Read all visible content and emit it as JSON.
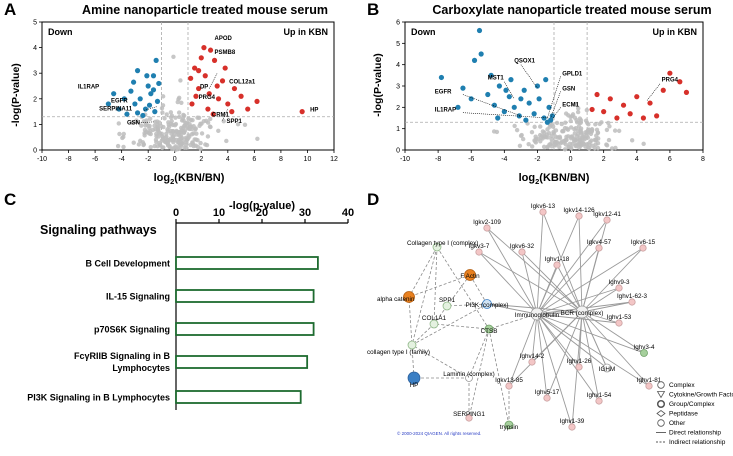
{
  "panels": {
    "a": {
      "letter": "A"
    },
    "b": {
      "letter": "B"
    },
    "c": {
      "letter": "C"
    },
    "d": {
      "letter": "D"
    }
  },
  "chart_data": [
    {
      "type": "scatter",
      "title": "Amine nanoparticle treated mouse serum",
      "xlabel_pre": "log",
      "xlabel_sub": "2",
      "xlabel_post": "(KBN/BN)",
      "ylabel": "-log(P-value)",
      "xlim": [
        -10,
        12
      ],
      "ylim": [
        0,
        5
      ],
      "xticks": [
        -10,
        -8,
        -6,
        -4,
        -2,
        0,
        2,
        4,
        6,
        8,
        10,
        12
      ],
      "yticks": [
        0,
        1,
        2,
        3,
        4,
        5
      ],
      "threshold_x": [
        -1,
        1
      ],
      "threshold_y": 1.3,
      "down_label": "Down",
      "up_label": "Up in KBN",
      "down_points": [
        [
          -4.2,
          1.6
        ],
        [
          -3.8,
          2.0
        ],
        [
          -3.3,
          2.3
        ],
        [
          -3.0,
          1.8
        ],
        [
          -2.6,
          2.0
        ],
        [
          -2.2,
          1.6
        ],
        [
          -1.8,
          2.2
        ],
        [
          -1.5,
          1.5
        ],
        [
          -3.6,
          1.4
        ],
        [
          -2.8,
          1.45
        ],
        [
          -2.0,
          2.5
        ],
        [
          -1.6,
          2.9
        ],
        [
          -1.3,
          1.9
        ],
        [
          -4.6,
          2.2
        ],
        [
          -3.1,
          2.65
        ],
        [
          -2.4,
          1.35
        ],
        [
          -1.9,
          1.75
        ],
        [
          -1.4,
          3.5
        ],
        [
          -2.8,
          3.1
        ],
        [
          -1.6,
          2.35
        ],
        [
          -5.0,
          1.8
        ],
        [
          -2.1,
          2.9
        ],
        [
          -1.2,
          2.6
        ]
      ],
      "up_points": [
        [
          1.2,
          2.8
        ],
        [
          1.5,
          3.2
        ],
        [
          1.8,
          2.4
        ],
        [
          2.0,
          3.6
        ],
        [
          2.3,
          2.9
        ],
        [
          2.6,
          2.2
        ],
        [
          3.0,
          3.5
        ],
        [
          3.3,
          2.0
        ],
        [
          3.6,
          2.7
        ],
        [
          4.0,
          1.8
        ],
        [
          4.5,
          2.4
        ],
        [
          5.0,
          2.1
        ],
        [
          5.5,
          1.6
        ],
        [
          6.2,
          1.9
        ],
        [
          2.2,
          4.0
        ],
        [
          2.7,
          3.9
        ],
        [
          1.3,
          1.8
        ],
        [
          1.6,
          2.1
        ],
        [
          2.9,
          1.4
        ],
        [
          3.8,
          3.2
        ],
        [
          4.3,
          1.5
        ],
        [
          1.8,
          3.1
        ],
        [
          2.5,
          1.6
        ],
        [
          3.2,
          2.5
        ],
        [
          9.6,
          1.5
        ]
      ],
      "labels": [
        {
          "text": "APOD",
          "x": 3.0,
          "y": 4.3
        },
        {
          "text": "PSMB8",
          "x": 3.0,
          "y": 3.75
        },
        {
          "text": "COL12a1",
          "x": 4.1,
          "y": 2.6
        },
        {
          "text": "DP",
          "x": 1.9,
          "y": 2.4
        },
        {
          "text": "PRG4",
          "x": 1.8,
          "y": 2.0
        },
        {
          "text": "CRM1",
          "x": 2.8,
          "y": 1.3
        },
        {
          "text": "SPP1",
          "x": 3.9,
          "y": 1.05
        },
        {
          "text": "HP",
          "x": 10.2,
          "y": 1.5
        },
        {
          "text": "IL1RAP",
          "x": -7.3,
          "y": 2.4
        },
        {
          "text": "EGFR",
          "x": -4.8,
          "y": 1.85
        },
        {
          "text": "SERPINA11",
          "x": -5.7,
          "y": 1.55
        },
        {
          "text": "GSN",
          "x": -3.6,
          "y": 1.0
        }
      ]
    },
    {
      "type": "scatter",
      "title": "Carboxylate nanoparticle treated mouse serum",
      "xlabel_pre": "log",
      "xlabel_sub": "2",
      "xlabel_post": "(KBN/BN)",
      "ylabel": "-log(P-value)",
      "xlim": [
        -10,
        8
      ],
      "ylim": [
        0,
        6
      ],
      "xticks": [
        -10,
        -8,
        -6,
        -4,
        -2,
        0,
        2,
        4,
        6,
        8
      ],
      "yticks": [
        0,
        1,
        2,
        3,
        4,
        5,
        6
      ],
      "threshold_x": [
        -1,
        1
      ],
      "threshold_y": 1.3,
      "down_label": "Down",
      "up_label": "Up in KBN",
      "down_points": [
        [
          -7.8,
          3.4
        ],
        [
          -6.5,
          2.9
        ],
        [
          -6.0,
          2.4
        ],
        [
          -5.4,
          4.5
        ],
        [
          -5.0,
          2.6
        ],
        [
          -4.6,
          2.1
        ],
        [
          -4.3,
          3.0
        ],
        [
          -4.0,
          1.8
        ],
        [
          -3.7,
          2.5
        ],
        [
          -3.4,
          2.0
        ],
        [
          -3.1,
          1.6
        ],
        [
          -2.8,
          2.8
        ],
        [
          -2.5,
          2.2
        ],
        [
          -2.2,
          1.7
        ],
        [
          -1.9,
          2.4
        ],
        [
          -1.6,
          1.5
        ],
        [
          -1.3,
          2.0
        ],
        [
          -1.2,
          1.4
        ],
        [
          -5.8,
          4.2
        ],
        [
          -4.8,
          3.5
        ],
        [
          -3.6,
          3.3
        ],
        [
          -2.0,
          3.0
        ],
        [
          -1.5,
          3.3
        ],
        [
          -4.4,
          1.5
        ],
        [
          -2.7,
          1.4
        ],
        [
          -6.8,
          2.0
        ],
        [
          -3.0,
          2.4
        ],
        [
          -3.9,
          2.8
        ],
        [
          -1.1,
          1.6
        ],
        [
          -1.4,
          1.3
        ],
        [
          -5.5,
          5.6
        ]
      ],
      "up_points": [
        [
          1.6,
          2.6
        ],
        [
          2.0,
          1.8
        ],
        [
          2.4,
          2.4
        ],
        [
          2.8,
          1.5
        ],
        [
          3.2,
          2.1
        ],
        [
          3.6,
          1.7
        ],
        [
          4.0,
          2.5
        ],
        [
          4.4,
          1.5
        ],
        [
          4.8,
          2.2
        ],
        [
          5.2,
          1.6
        ],
        [
          5.6,
          2.8
        ],
        [
          6.0,
          3.6
        ],
        [
          6.6,
          3.2
        ],
        [
          7.0,
          2.7
        ],
        [
          1.3,
          1.9
        ]
      ],
      "labels": [
        {
          "text": "QSOX1",
          "x": -3.4,
          "y": 4.1
        },
        {
          "text": "MST1",
          "x": -5.0,
          "y": 3.3
        },
        {
          "text": "GPLD1",
          "x": -0.5,
          "y": 3.5
        },
        {
          "text": "GSN",
          "x": -0.5,
          "y": 2.8
        },
        {
          "text": "EGFR",
          "x": -8.2,
          "y": 2.65
        },
        {
          "text": "ECM1",
          "x": -0.5,
          "y": 2.05
        },
        {
          "text": "IL1RAP",
          "x": -8.2,
          "y": 1.8
        },
        {
          "text": "PRG4",
          "x": 5.5,
          "y": 3.2
        }
      ]
    },
    {
      "type": "bar",
      "orientation": "horizontal",
      "title": "Signaling pathways",
      "xlabel": "-log(p-value)",
      "xlim": [
        0,
        40
      ],
      "xticks": [
        0,
        10,
        20,
        30,
        40
      ],
      "categories": [
        [
          "B Cell Development"
        ],
        [
          "IL-15 Signaling"
        ],
        [
          "p70S6K Signaling"
        ],
        [
          "FcγRIIB Signaling in B",
          "Lymphocytes"
        ],
        [
          "PI3K Signaling in B Lymphocytes"
        ]
      ],
      "values": [
        33,
        32,
        32,
        30.5,
        29
      ]
    }
  ],
  "network": {
    "nodes": [
      {
        "id": "igkv6-13",
        "label": "Igkv6-13",
        "type": "other"
      },
      {
        "id": "igkv14-126",
        "label": "Igkv14-126",
        "type": "other"
      },
      {
        "id": "igkv12-41",
        "label": "Igkv12-41",
        "type": "other"
      },
      {
        "id": "igkv2-109",
        "label": "Igkv2-109",
        "type": "other"
      },
      {
        "id": "collagen-complex",
        "label": "Collagen type I (complex)",
        "type": "complex"
      },
      {
        "id": "igkv3-7",
        "label": "Igkv3-7",
        "type": "other"
      },
      {
        "id": "igkv6-32",
        "label": "Igkv6-32",
        "type": "other"
      },
      {
        "id": "igkv4-57",
        "label": "Igkv4-57",
        "type": "other"
      },
      {
        "id": "igkv6-15",
        "label": "Igkv6-15",
        "type": "other"
      },
      {
        "id": "f-actin",
        "label": "F Actin",
        "type": "complex"
      },
      {
        "id": "ighv1-18",
        "label": "Ighv1-18",
        "type": "other"
      },
      {
        "id": "alpha-catenin",
        "label": "alpha catenin",
        "type": "complex"
      },
      {
        "id": "ighv9-3",
        "label": "Ighv9-3",
        "type": "other"
      },
      {
        "id": "spp1",
        "label": "SPP1",
        "type": "cytokine"
      },
      {
        "id": "pi3k",
        "label": "PI3K (complex)",
        "type": "complex"
      },
      {
        "id": "immunoglobulin",
        "label": "Immunoglobulin",
        "type": "complex"
      },
      {
        "id": "bcr",
        "label": "BCR (complex)",
        "type": "complex"
      },
      {
        "id": "ighv1-62-3",
        "label": "Ighv1-62-3",
        "type": "other"
      },
      {
        "id": "col1a1",
        "label": "COL1A1",
        "type": "other"
      },
      {
        "id": "collagen-family",
        "label": "collagen type I (family)",
        "type": "group"
      },
      {
        "id": "ctsb",
        "label": "CTSB",
        "type": "peptidase"
      },
      {
        "id": "ighv1-53",
        "label": "Ighv1-53",
        "type": "other"
      },
      {
        "id": "ighv14-2",
        "label": "Ighv14-2",
        "type": "other"
      },
      {
        "id": "ighv3-4",
        "label": "Ighv3-4",
        "type": "other"
      },
      {
        "id": "ighv1-26",
        "label": "Ighv1-26",
        "type": "other"
      },
      {
        "id": "ighm",
        "label": "IGHM",
        "type": "complex"
      },
      {
        "id": "hp",
        "label": "HP",
        "type": "peptidase"
      },
      {
        "id": "laminin",
        "label": "Laminin (complex)",
        "type": "complex"
      },
      {
        "id": "igkv13-85",
        "label": "Igkv13-85",
        "type": "other"
      },
      {
        "id": "ighv1-81",
        "label": "Ighv1-81",
        "type": "other"
      },
      {
        "id": "ighv5-17",
        "label": "Ighv5-17",
        "type": "other"
      },
      {
        "id": "ighv1-54",
        "label": "Ighv1-54",
        "type": "other"
      },
      {
        "id": "serping1",
        "label": "SERPING1",
        "type": "other"
      },
      {
        "id": "trypsin",
        "label": "trypsin",
        "type": "peptidase"
      },
      {
        "id": "ighv1-39",
        "label": "Ighv1-39",
        "type": "other"
      }
    ],
    "copyright": "© 2000-2024 QIAGEN. All rights reserved.",
    "legend": [
      {
        "shape": "complex",
        "label": "Complex"
      },
      {
        "shape": "cytokine",
        "label": "Cytokine/Growth Factor"
      },
      {
        "shape": "group",
        "label": "Group/Complex"
      },
      {
        "shape": "peptidase",
        "label": "Peptidase"
      },
      {
        "shape": "other",
        "label": "Other"
      },
      {
        "shape": "direct",
        "label": "Direct relationship"
      },
      {
        "shape": "indirect",
        "label": "Indirect relationship"
      }
    ],
    "colors": {
      "up": "#d7302a",
      "down": "#1f7fb0",
      "ns": "#bdbdbd",
      "bar": "#1e6b30",
      "orange": "#e8801f",
      "blue": "#3b7fc4",
      "green": "#a6cf9c",
      "pink": "#f3c6c6"
    }
  }
}
